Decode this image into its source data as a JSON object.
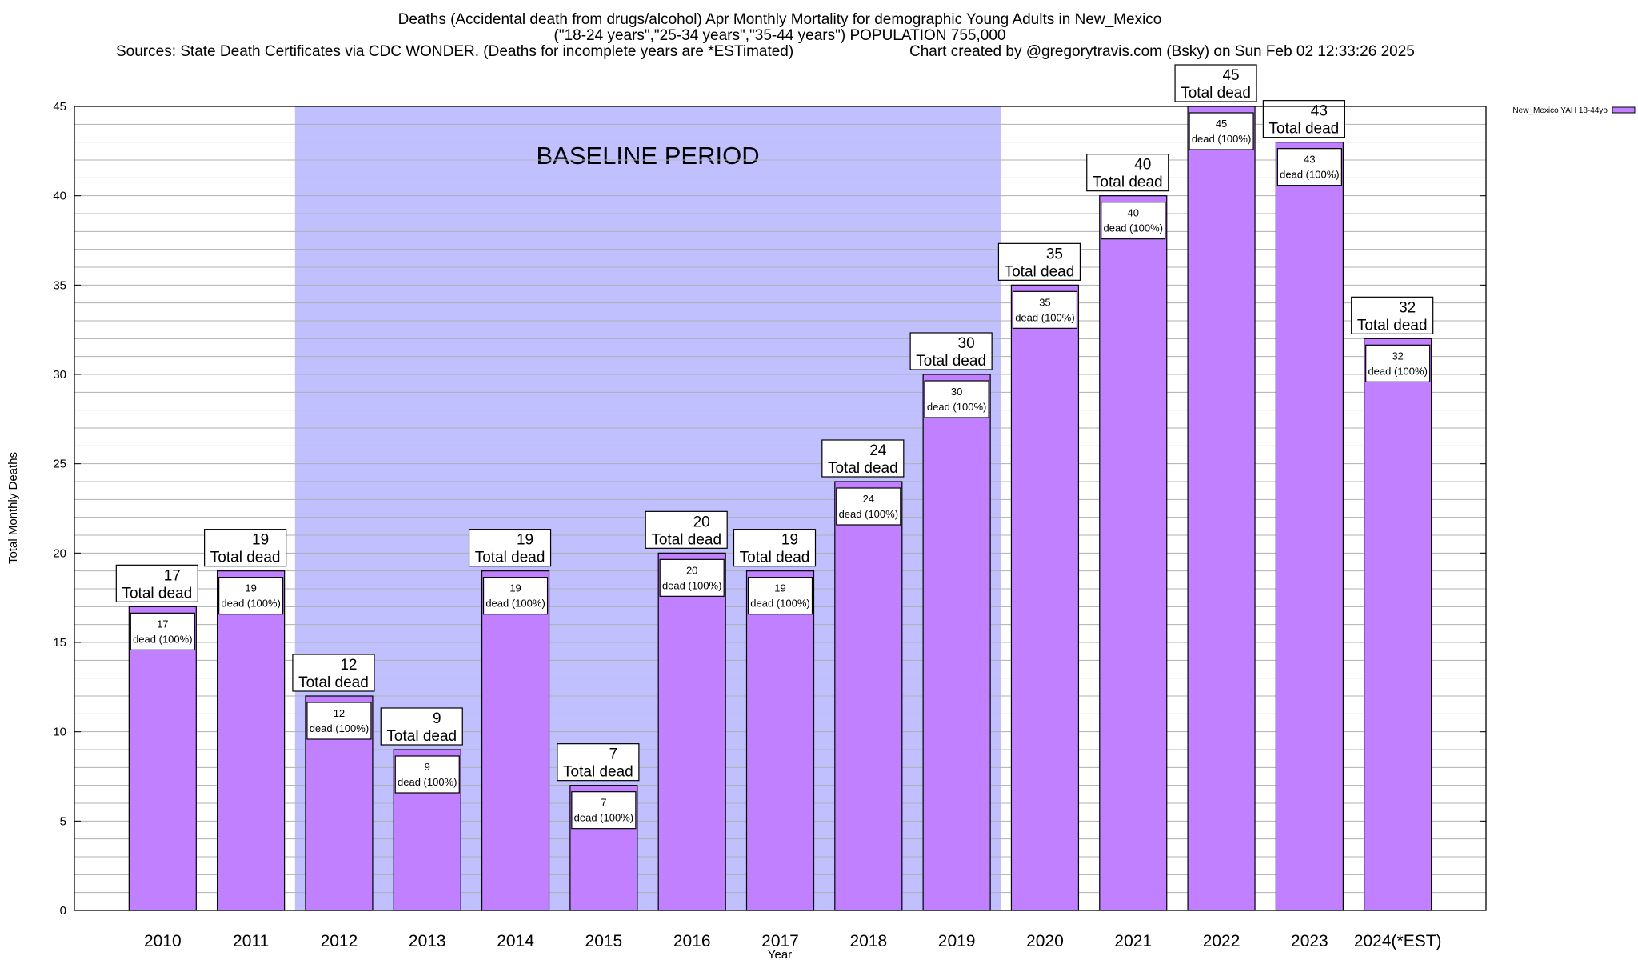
{
  "chart_data": {
    "type": "bar",
    "title_lines": [
      "Deaths (Accidental death from drugs/alcohol) Apr Monthly Mortality for demographic Young Adults in New_Mexico",
      "(\"18-24 years\",\"25-34 years\",\"35-44 years\") POPULATION 755,000"
    ],
    "sources": "Sources: State Death Certificates via CDC WONDER. (Deaths for incomplete years are *ESTimated)",
    "credit": "Chart created by @gregorytravis.com (Bsky) on Sun Feb 02 12:33:26 2025",
    "xlabel": "Year",
    "ylabel": "Total Monthly Deaths",
    "ylim": [
      0,
      45
    ],
    "yticks": [
      0,
      5,
      10,
      15,
      20,
      25,
      30,
      35,
      40,
      45
    ],
    "grid": true,
    "categories": [
      "2010",
      "2011",
      "2012",
      "2013",
      "2014",
      "2015",
      "2016",
      "2017",
      "2018",
      "2019",
      "2020",
      "2021",
      "2022",
      "2023",
      "2024(*EST)"
    ],
    "series": [
      {
        "name": "New_Mexico YAH 18-44yo",
        "color": "#c080ff",
        "values": [
          17,
          19,
          12,
          9,
          19,
          7,
          20,
          19,
          24,
          30,
          35,
          40,
          45,
          43,
          32
        ]
      }
    ],
    "top_label_suffix": "Total dead",
    "inner_label_suffix": "dead (100%)",
    "annotation": {
      "text": "BASELINE PERIOD",
      "from_category": "2012",
      "to_category": "2019",
      "color": "#c0c0ff"
    },
    "legend": "top-right"
  }
}
